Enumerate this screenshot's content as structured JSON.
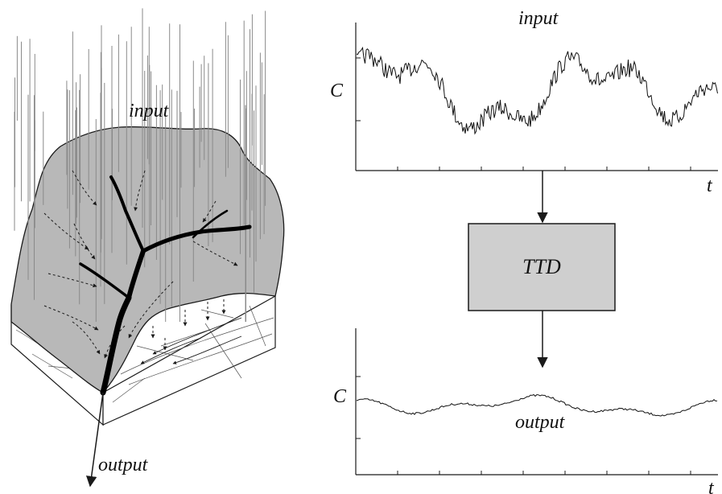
{
  "catchment": {
    "input_label": "input",
    "output_label": "output"
  },
  "input_panel": {
    "title": "input",
    "y_label": "C",
    "x_label": "t"
  },
  "ttd_box": {
    "label": "TTD",
    "fill": "#cfcfcf"
  },
  "output_panel": {
    "series_label": "output",
    "y_label": "C",
    "x_label": "t"
  },
  "colors": {
    "catchment_fill": "#b8b8b8",
    "rain": "#8a8a8a",
    "ink": "#1a1a1a"
  }
}
